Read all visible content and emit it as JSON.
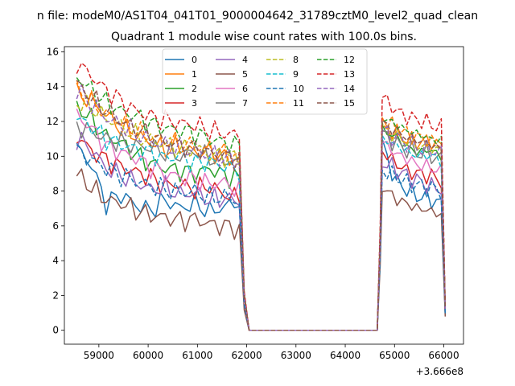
{
  "figure": {
    "suptitle": "n file: modeM0/AS1T04_041T01_9000004642_31789cztM0_level2_quad_clean",
    "title": "Quadrant 1 module wise count rates with 100.0s bins.",
    "offset_text": "+3.666e8"
  },
  "chart_data": {
    "type": "line",
    "title": "Quadrant 1 module wise count rates with 100.0s bins.",
    "xlabel": "",
    "ylabel": "",
    "x_offset": 366600000,
    "xlim": [
      58300,
      66400
    ],
    "ylim": [
      -0.8,
      16.3
    ],
    "x_ticks": [
      59000,
      60000,
      61000,
      62000,
      63000,
      64000,
      65000,
      66000
    ],
    "x_tick_labels": [
      "59000",
      "60000",
      "61000",
      "62000",
      "63000",
      "64000",
      "65000",
      "66000"
    ],
    "y_ticks": [
      0,
      2,
      4,
      6,
      8,
      10,
      12,
      14,
      16
    ],
    "y_tick_labels": [
      "0",
      "2",
      "4",
      "6",
      "8",
      "10",
      "12",
      "14",
      "16"
    ],
    "legend": {
      "placement": "upper center",
      "ncol": 4
    },
    "bin_width_s": 100,
    "segments": [
      {
        "start": 58550,
        "end": 61850,
        "step": 100
      },
      {
        "start": 64750,
        "end": 65950,
        "step": 100
      }
    ],
    "series": [
      {
        "name": "0",
        "color": "#1f77b4",
        "dashed": false,
        "seg1": [
          10.5,
          9.5,
          7.3,
          7.8,
          7.2,
          6.9,
          7.5,
          7.0,
          7.3,
          6.8,
          7.1,
          7.4
        ],
        "seg2": [
          10.8,
          8.7,
          8.1,
          7.7,
          7.6,
          7.2
        ]
      },
      {
        "name": "1",
        "color": "#ff7f0e",
        "dashed": false,
        "seg1": [
          13.6,
          13.2,
          12.4,
          11.6,
          11.2,
          10.8,
          10.4,
          10.6,
          10.2,
          10.3,
          9.9,
          9.8
        ],
        "seg2": [
          11.8,
          11.4,
          11.0,
          10.8,
          10.9,
          10.6
        ]
      },
      {
        "name": "2",
        "color": "#2ca02c",
        "dashed": false,
        "seg1": [
          12.9,
          12.1,
          11.1,
          10.8,
          10.1,
          9.6,
          9.3,
          9.2,
          9.0,
          9.3,
          8.9,
          8.7
        ],
        "seg2": [
          11.5,
          11.2,
          10.6,
          10.2,
          10.4,
          10.0
        ]
      },
      {
        "name": "3",
        "color": "#d62728",
        "dashed": false,
        "seg1": [
          11.2,
          10.3,
          9.8,
          9.4,
          9.1,
          8.8,
          8.3,
          8.4,
          8.1,
          8.3,
          7.8,
          7.6
        ],
        "seg2": [
          10.3,
          9.7,
          9.2,
          9.0,
          8.9,
          8.6
        ]
      },
      {
        "name": "4",
        "color": "#9467bd",
        "dashed": false,
        "seg1": [
          11.0,
          10.4,
          9.3,
          8.9,
          8.5,
          8.1,
          8.2,
          7.8,
          7.9,
          7.5,
          7.6,
          7.4
        ],
        "seg2": [
          9.7,
          9.3,
          8.9,
          8.6,
          8.3,
          8.1
        ]
      },
      {
        "name": "5",
        "color": "#8c564b",
        "dashed": false,
        "seg1": [
          9.0,
          8.2,
          7.5,
          7.3,
          6.9,
          6.6,
          6.5,
          6.3,
          6.4,
          6.1,
          6.0,
          5.8
        ],
        "seg2": [
          8.3,
          7.6,
          7.3,
          7.0,
          6.9,
          6.6
        ]
      },
      {
        "name": "6",
        "color": "#e377c2",
        "dashed": false,
        "seg1": [
          12.4,
          11.6,
          10.6,
          10.2,
          9.9,
          9.4,
          9.0,
          8.8,
          8.7,
          8.4,
          8.5,
          8.0
        ],
        "seg2": [
          10.9,
          10.2,
          9.9,
          9.5,
          9.4,
          9.1
        ]
      },
      {
        "name": "7",
        "color": "#7f7f7f",
        "dashed": false,
        "seg1": [
          11.8,
          11.4,
          11.0,
          10.8,
          10.6,
          10.5,
          10.2,
          10.0,
          10.3,
          9.9,
          9.8,
          9.6
        ],
        "seg2": [
          11.3,
          10.8,
          10.4,
          10.2,
          10.1,
          9.8
        ]
      },
      {
        "name": "8",
        "color": "#bcbd22",
        "dashed": true,
        "seg1": [
          13.1,
          12.8,
          12.2,
          11.7,
          11.2,
          10.9,
          10.7,
          10.4,
          10.5,
          10.1,
          10.0,
          9.9
        ],
        "seg2": [
          11.6,
          11.2,
          10.9,
          10.6,
          10.5,
          10.3
        ]
      },
      {
        "name": "9",
        "color": "#17becf",
        "dashed": true,
        "seg1": [
          12.2,
          11.7,
          11.0,
          10.7,
          10.4,
          10.2,
          9.9,
          10.0,
          9.6,
          9.7,
          9.4,
          9.2
        ],
        "seg2": [
          11.0,
          10.7,
          10.3,
          10.0,
          10.1,
          9.7
        ]
      },
      {
        "name": "10",
        "color": "#1f77b4",
        "dashed": true,
        "seg1": [
          10.3,
          9.8,
          9.3,
          8.9,
          8.6,
          8.3,
          8.1,
          7.9,
          8.0,
          7.6,
          7.7,
          7.4
        ],
        "seg2": [
          9.2,
          8.9,
          8.5,
          8.3,
          8.2,
          8.0
        ]
      },
      {
        "name": "11",
        "color": "#ff7f0e",
        "dashed": true,
        "seg1": [
          13.9,
          13.1,
          12.4,
          12.0,
          11.5,
          11.1,
          10.9,
          10.7,
          10.6,
          10.3,
          10.2,
          9.9
        ],
        "seg2": [
          12.0,
          11.7,
          11.3,
          11.1,
          10.9,
          10.7
        ]
      },
      {
        "name": "12",
        "color": "#2ca02c",
        "dashed": true,
        "seg1": [
          14.6,
          13.8,
          13.1,
          12.6,
          12.3,
          11.9,
          11.6,
          11.5,
          11.3,
          11.0,
          10.8,
          10.6
        ],
        "seg2": [
          12.2,
          11.9,
          11.5,
          11.3,
          11.0,
          10.9
        ]
      },
      {
        "name": "13",
        "color": "#d62728",
        "dashed": true,
        "seg1": [
          15.4,
          14.6,
          13.8,
          13.2,
          12.6,
          12.3,
          12.1,
          11.9,
          11.8,
          11.5,
          11.3,
          11.2
        ],
        "seg2": [
          13.5,
          12.7,
          12.3,
          12.1,
          11.9,
          11.6
        ]
      },
      {
        "name": "14",
        "color": "#9467bd",
        "dashed": true,
        "seg1": [
          13.8,
          13.0,
          12.2,
          11.8,
          11.3,
          10.9,
          10.6,
          10.4,
          10.3,
          10.1,
          9.9,
          9.7
        ],
        "seg2": [
          11.4,
          11.1,
          10.8,
          10.5,
          10.4,
          10.2
        ]
      },
      {
        "name": "15",
        "color": "#8c564b",
        "dashed": true,
        "seg1": [
          14.2,
          13.4,
          12.6,
          12.0,
          11.6,
          11.2,
          10.8,
          10.6,
          10.5,
          10.2,
          10.0,
          9.8
        ],
        "seg2": [
          11.9,
          11.5,
          11.1,
          10.9,
          10.7,
          10.4
        ]
      }
    ]
  }
}
